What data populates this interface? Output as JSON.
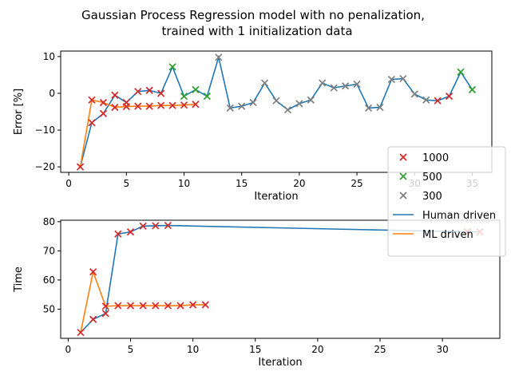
{
  "chart_data": {
    "title_lines": [
      "Gaussian Process Regression model with no  penalization,",
      "trained with 1 initialization data"
    ],
    "colors": {
      "human": "#1f77b4",
      "ml": "#ff7f0e",
      "m1000": "#d62728",
      "m500": "#2ca02c",
      "m300": "#7f7f7f"
    },
    "legend": {
      "placement": "right",
      "entries": [
        {
          "label": "1000",
          "kind": "marker",
          "color_key": "m1000"
        },
        {
          "label": "500",
          "kind": "marker",
          "color_key": "m500"
        },
        {
          "label": "300",
          "kind": "marker",
          "color_key": "m300"
        },
        {
          "label": "Human driven",
          "kind": "line",
          "color_key": "human"
        },
        {
          "label": "ML driven",
          "kind": "line",
          "color_key": "ml"
        }
      ]
    },
    "charts": [
      {
        "type": "line",
        "xlabel": "Iteration",
        "ylabel": "Error [%]",
        "xlim": [
          -0.7,
          36.7
        ],
        "ylim": [
          -21.5,
          11.5
        ],
        "xticks": [
          0,
          5,
          10,
          15,
          20,
          25,
          30,
          35
        ],
        "yticks": [
          -20,
          -10,
          0,
          10
        ],
        "series": [
          {
            "name": "Human driven",
            "color_key": "human",
            "x": [
              1,
              2,
              3,
              4,
              5,
              6,
              7,
              8,
              9,
              10,
              11,
              12,
              13,
              14,
              15,
              16,
              17,
              18,
              19,
              20,
              21,
              22,
              23,
              24,
              25,
              26,
              27,
              28,
              29,
              30,
              31,
              32,
              33,
              34,
              35
            ],
            "y": [
              -20,
              -8,
              -5.5,
              -0.5,
              -2.5,
              0.5,
              0.8,
              0,
              7.2,
              -0.8,
              1,
              -0.8,
              9.8,
              -4,
              -3.5,
              -2.5,
              2.8,
              -2,
              -4.5,
              -2.8,
              -1.8,
              2.8,
              1.5,
              2,
              2.5,
              -4,
              -3.8,
              3.8,
              4,
              -0.2,
              -1.8,
              -2,
              -0.8,
              5.8,
              1
            ]
          },
          {
            "name": "ML driven",
            "color_key": "ml",
            "x": [
              1,
              2,
              3,
              4,
              5,
              6,
              7,
              8,
              9,
              10,
              11
            ],
            "y": [
              -20,
              -1.8,
              -2.5,
              -3.8,
              -3.6,
              -3.5,
              -3.5,
              -3.3,
              -3.3,
              -3.2,
              -3
            ]
          }
        ],
        "markers": [
          {
            "x": 1,
            "y": -20,
            "color_key": "m1000"
          },
          {
            "x": 2,
            "y": -8,
            "color_key": "m1000"
          },
          {
            "x": 3,
            "y": -5.5,
            "color_key": "m1000"
          },
          {
            "x": 4,
            "y": -0.5,
            "color_key": "m1000"
          },
          {
            "x": 5,
            "y": -2.5,
            "color_key": "m1000"
          },
          {
            "x": 6,
            "y": 0.5,
            "color_key": "m1000"
          },
          {
            "x": 7,
            "y": 0.8,
            "color_key": "m1000"
          },
          {
            "x": 8,
            "y": 0,
            "color_key": "m1000"
          },
          {
            "x": 9,
            "y": 7.2,
            "color_key": "m500"
          },
          {
            "x": 10,
            "y": -0.8,
            "color_key": "m500"
          },
          {
            "x": 11,
            "y": 1,
            "color_key": "m500"
          },
          {
            "x": 12,
            "y": -0.8,
            "color_key": "m500"
          },
          {
            "x": 13,
            "y": 9.8,
            "color_key": "m300"
          },
          {
            "x": 14,
            "y": -4,
            "color_key": "m300"
          },
          {
            "x": 15,
            "y": -3.5,
            "color_key": "m300"
          },
          {
            "x": 16,
            "y": -2.5,
            "color_key": "m300"
          },
          {
            "x": 17,
            "y": 2.8,
            "color_key": "m300"
          },
          {
            "x": 18,
            "y": -2,
            "color_key": "m300"
          },
          {
            "x": 19,
            "y": -4.5,
            "color_key": "m300"
          },
          {
            "x": 20,
            "y": -2.8,
            "color_key": "m300"
          },
          {
            "x": 21,
            "y": -1.8,
            "color_key": "m300"
          },
          {
            "x": 22,
            "y": 2.8,
            "color_key": "m300"
          },
          {
            "x": 23,
            "y": 1.5,
            "color_key": "m300"
          },
          {
            "x": 24,
            "y": 2,
            "color_key": "m300"
          },
          {
            "x": 25,
            "y": 2.5,
            "color_key": "m300"
          },
          {
            "x": 26,
            "y": -4,
            "color_key": "m300"
          },
          {
            "x": 27,
            "y": -3.8,
            "color_key": "m300"
          },
          {
            "x": 28,
            "y": 3.8,
            "color_key": "m300"
          },
          {
            "x": 29,
            "y": 4,
            "color_key": "m300"
          },
          {
            "x": 30,
            "y": -0.2,
            "color_key": "m300"
          },
          {
            "x": 31,
            "y": -1.8,
            "color_key": "m300"
          },
          {
            "x": 32,
            "y": -2,
            "color_key": "m1000"
          },
          {
            "x": 33,
            "y": -0.8,
            "color_key": "m1000"
          },
          {
            "x": 34,
            "y": 5.8,
            "color_key": "m500"
          },
          {
            "x": 35,
            "y": 1,
            "color_key": "m500"
          },
          {
            "x": 2,
            "y": -1.8,
            "color_key": "m1000"
          },
          {
            "x": 3,
            "y": -2.5,
            "color_key": "m1000"
          },
          {
            "x": 4,
            "y": -3.8,
            "color_key": "m1000"
          },
          {
            "x": 5,
            "y": -3.6,
            "color_key": "m1000"
          },
          {
            "x": 6,
            "y": -3.5,
            "color_key": "m1000"
          },
          {
            "x": 7,
            "y": -3.5,
            "color_key": "m1000"
          },
          {
            "x": 8,
            "y": -3.3,
            "color_key": "m1000"
          },
          {
            "x": 9,
            "y": -3.3,
            "color_key": "m1000"
          },
          {
            "x": 10,
            "y": -3.2,
            "color_key": "m1000"
          },
          {
            "x": 11,
            "y": -3,
            "color_key": "m1000"
          }
        ]
      },
      {
        "type": "line",
        "xlabel": "Iteration",
        "ylabel": "Time",
        "xlim": [
          -0.6,
          34.6
        ],
        "ylim": [
          40,
          80.5
        ],
        "xticks": [
          0,
          5,
          10,
          15,
          20,
          25,
          30
        ],
        "yticks": [
          50,
          60,
          70,
          80
        ],
        "series": [
          {
            "name": "Human driven",
            "color_key": "human",
            "x": [
              1,
              2,
              3,
              4,
              5,
              6,
              7,
              8,
              32,
              33
            ],
            "y": [
              42,
              46.5,
              48.5,
              75.8,
              76.5,
              78.5,
              78.6,
              78.7,
              76.5,
              76.5
            ]
          },
          {
            "name": "ML driven",
            "color_key": "ml",
            "x": [
              1,
              2,
              3,
              4,
              5,
              6,
              7,
              8,
              9,
              10,
              11
            ],
            "y": [
              42,
              62.8,
              51,
              51.2,
              51.2,
              51.2,
              51.2,
              51.2,
              51.2,
              51.5,
              51.5
            ]
          }
        ],
        "markers": [
          {
            "x": 1,
            "y": 42,
            "color_key": "m1000"
          },
          {
            "x": 2,
            "y": 46.5,
            "color_key": "m1000"
          },
          {
            "x": 3,
            "y": 48.5,
            "color_key": "m1000"
          },
          {
            "x": 4,
            "y": 75.8,
            "color_key": "m1000"
          },
          {
            "x": 5,
            "y": 76.5,
            "color_key": "m1000"
          },
          {
            "x": 6,
            "y": 78.5,
            "color_key": "m1000"
          },
          {
            "x": 7,
            "y": 78.6,
            "color_key": "m1000"
          },
          {
            "x": 8,
            "y": 78.7,
            "color_key": "m1000"
          },
          {
            "x": 32,
            "y": 76.5,
            "color_key": "m1000"
          },
          {
            "x": 33,
            "y": 76.5,
            "color_key": "m1000"
          },
          {
            "x": 2,
            "y": 62.8,
            "color_key": "m1000"
          },
          {
            "x": 3,
            "y": 51,
            "color_key": "m1000"
          },
          {
            "x": 4,
            "y": 51.2,
            "color_key": "m1000"
          },
          {
            "x": 5,
            "y": 51.2,
            "color_key": "m1000"
          },
          {
            "x": 6,
            "y": 51.2,
            "color_key": "m1000"
          },
          {
            "x": 7,
            "y": 51.2,
            "color_key": "m1000"
          },
          {
            "x": 8,
            "y": 51.2,
            "color_key": "m1000"
          },
          {
            "x": 9,
            "y": 51.2,
            "color_key": "m1000"
          },
          {
            "x": 10,
            "y": 51.5,
            "color_key": "m1000"
          },
          {
            "x": 11,
            "y": 51.5,
            "color_key": "m1000"
          }
        ]
      }
    ]
  }
}
